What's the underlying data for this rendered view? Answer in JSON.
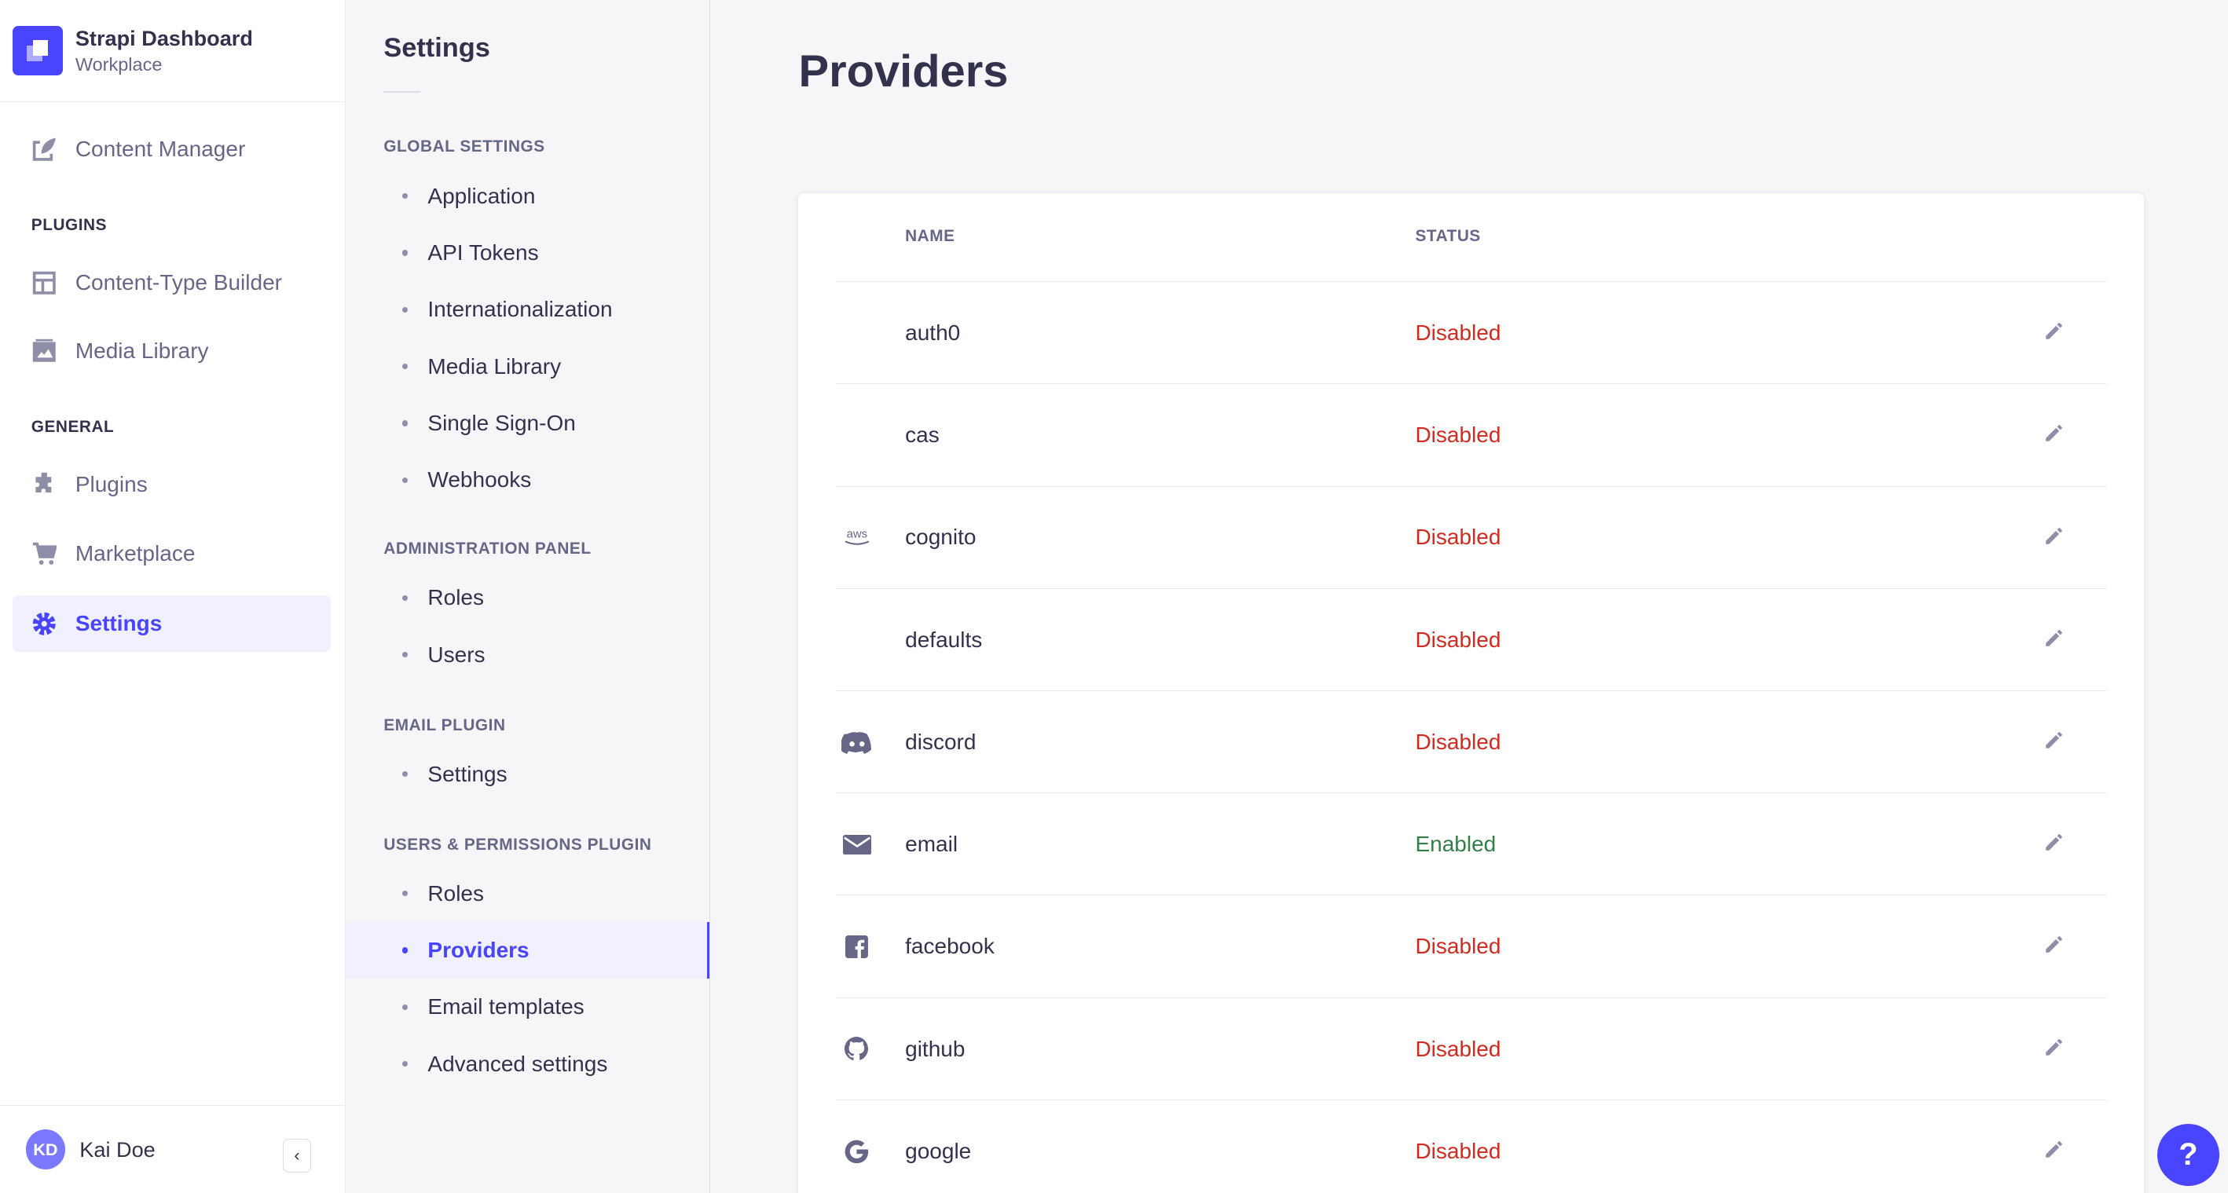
{
  "brand": {
    "title": "Strapi Dashboard",
    "subtitle": "Workplace"
  },
  "nav": {
    "content_manager": "Content Manager",
    "plugins_section": "PLUGINS",
    "content_type_builder": "Content-Type Builder",
    "media_library": "Media Library",
    "general_section": "GENERAL",
    "plugins": "Plugins",
    "marketplace": "Marketplace",
    "settings": "Settings"
  },
  "user": {
    "initials": "KD",
    "name": "Kai Doe"
  },
  "settings_nav": {
    "title": "Settings",
    "sections": [
      {
        "title": "GLOBAL SETTINGS",
        "items": [
          "Application",
          "API Tokens",
          "Internationalization",
          "Media Library",
          "Single Sign-On",
          "Webhooks"
        ]
      },
      {
        "title": "ADMINISTRATION PANEL",
        "items": [
          "Roles",
          "Users"
        ]
      },
      {
        "title": "EMAIL PLUGIN",
        "items": [
          "Settings"
        ]
      },
      {
        "title": "USERS & PERMISSIONS PLUGIN",
        "items": [
          "Roles",
          "Providers",
          "Email templates",
          "Advanced settings"
        ]
      }
    ],
    "active": "Providers"
  },
  "page": {
    "title": "Providers"
  },
  "table": {
    "headers": {
      "name": "NAME",
      "status": "STATUS"
    },
    "rows": [
      {
        "icon": "",
        "name": "auth0",
        "status": "Disabled"
      },
      {
        "icon": "aws-icon",
        "name": "cas",
        "status": "Disabled"
      },
      {
        "icon": "aws-icon",
        "name": "cognito",
        "status": "Disabled"
      },
      {
        "icon": "",
        "name": "defaults",
        "status": "Disabled"
      },
      {
        "icon": "discord-icon",
        "name": "discord",
        "status": "Disabled"
      },
      {
        "icon": "envelope-icon",
        "name": "email",
        "status": "Enabled"
      },
      {
        "icon": "facebook-icon",
        "name": "facebook",
        "status": "Disabled"
      },
      {
        "icon": "github-icon",
        "name": "github",
        "status": "Disabled"
      },
      {
        "icon": "google-icon",
        "name": "google",
        "status": "Disabled"
      }
    ]
  },
  "colors": {
    "accent": "#4945ff",
    "disabled": "#d02b20",
    "enabled": "#328048"
  },
  "help": {
    "label": "?"
  }
}
